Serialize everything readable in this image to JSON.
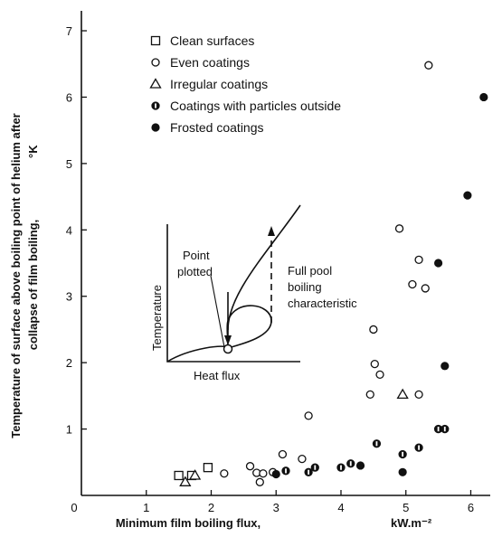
{
  "chart_data": {
    "type": "scatter",
    "xlabel": "Minimum film boiling flux,",
    "xunit": "kW.m⁻²",
    "ylabel_line1": "Temperature of surface above boiling point of helium after",
    "ylabel_line2": "collapse of film boiling,",
    "yunit": "°K",
    "xlim": [
      0,
      6.3
    ],
    "ylim": [
      0,
      7.3
    ],
    "xticks": [
      "0",
      "1",
      "2",
      "3",
      "4",
      "5",
      "6"
    ],
    "yticks": [
      "1",
      "2",
      "3",
      "4",
      "5",
      "6",
      "7"
    ],
    "legend_position": "top-left",
    "series": [
      {
        "name": "Clean surfaces",
        "marker": "square",
        "points": [
          [
            1.5,
            0.3
          ],
          [
            1.7,
            0.3
          ],
          [
            1.95,
            0.42
          ]
        ]
      },
      {
        "name": "Even coatings",
        "marker": "open-circle",
        "points": [
          [
            2.2,
            0.33
          ],
          [
            2.6,
            0.44
          ],
          [
            2.7,
            0.34
          ],
          [
            2.75,
            0.2
          ],
          [
            2.8,
            0.33
          ],
          [
            2.95,
            0.35
          ],
          [
            3.1,
            0.62
          ],
          [
            3.4,
            0.55
          ],
          [
            3.5,
            1.2
          ],
          [
            4.45,
            1.52
          ],
          [
            4.5,
            2.5
          ],
          [
            4.52,
            1.98
          ],
          [
            4.6,
            1.82
          ],
          [
            4.9,
            4.02
          ],
          [
            5.1,
            3.18
          ],
          [
            5.2,
            3.55
          ],
          [
            5.3,
            3.12
          ],
          [
            5.35,
            6.48
          ],
          [
            5.2,
            1.52
          ]
        ]
      },
      {
        "name": "Irregular coatings",
        "marker": "triangle",
        "points": [
          [
            1.6,
            0.2
          ],
          [
            1.75,
            0.3
          ],
          [
            4.95,
            1.52
          ]
        ]
      },
      {
        "name": "Coatings with particles outside",
        "marker": "half-circle",
        "points": [
          [
            3.15,
            0.37
          ],
          [
            3.5,
            0.35
          ],
          [
            3.6,
            0.42
          ],
          [
            4.0,
            0.42
          ],
          [
            4.15,
            0.48
          ],
          [
            4.55,
            0.78
          ],
          [
            4.95,
            0.62
          ],
          [
            5.2,
            0.72
          ],
          [
            5.5,
            1.0
          ],
          [
            5.6,
            1.0
          ]
        ]
      },
      {
        "name": "Frosted coatings",
        "marker": "filled-circle",
        "points": [
          [
            3.0,
            0.32
          ],
          [
            4.3,
            0.45
          ],
          [
            4.95,
            0.35
          ],
          [
            5.5,
            3.5
          ],
          [
            5.6,
            1.95
          ],
          [
            5.95,
            4.52
          ],
          [
            6.2,
            6.0
          ]
        ]
      }
    ],
    "inset": {
      "ylabel": "Temperature",
      "xlabel": "Heat flux",
      "annotation_point": "Point plotted",
      "annotation_point_line1": "Point",
      "annotation_point_line2": "plotted",
      "annotation_curve_line1": "Full pool",
      "annotation_curve_line2": "boiling",
      "annotation_curve_line3": "characteristic"
    }
  }
}
